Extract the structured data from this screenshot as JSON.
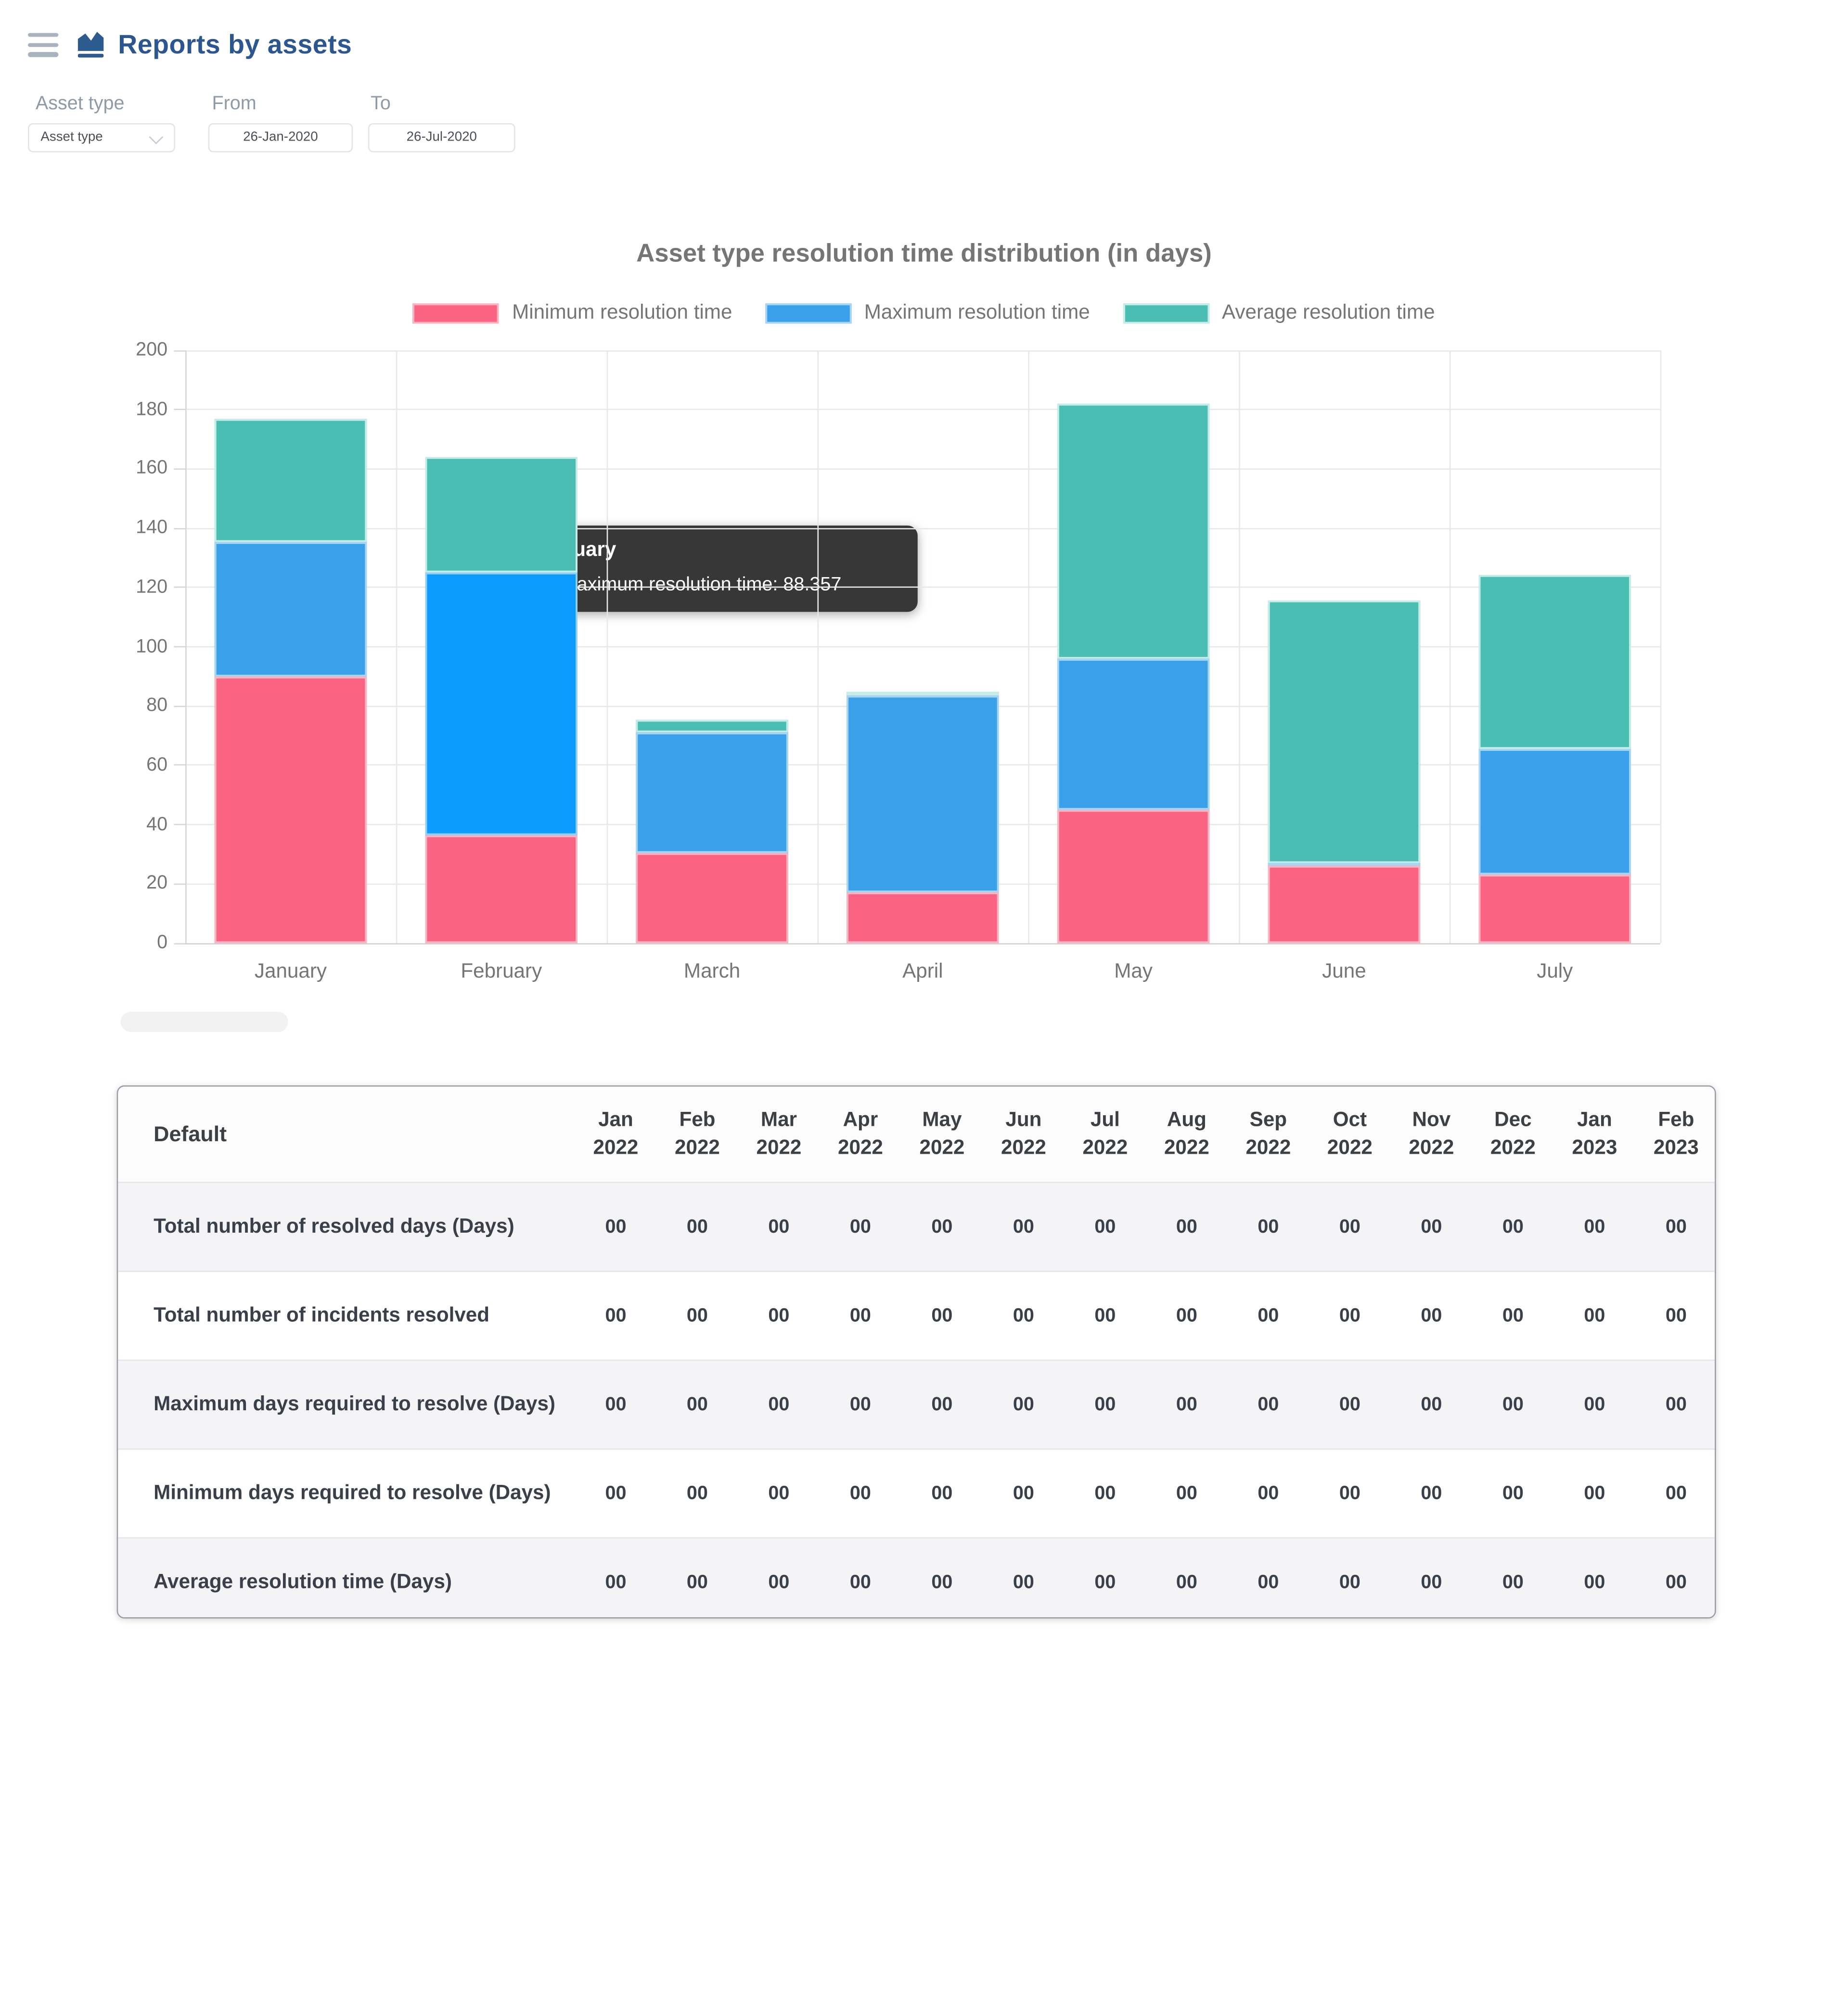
{
  "header": {
    "title": "Reports by assets"
  },
  "filters": {
    "asset_type_label": "Asset type",
    "from_label": "From",
    "to_label": "To",
    "asset_type_value": "Asset type",
    "from_value": "26-Jan-2020",
    "to_value": "26-Jul-2020"
  },
  "colors": {
    "header_navy": "#2B5690",
    "hamburger_grey": "#A9B3BD",
    "text_grey": "#757575",
    "tooltip_bg": "#2C2C2C"
  },
  "chart_data": {
    "type": "bar",
    "stacked": true,
    "title": "Asset type resolution time distribution (in days)",
    "categories": [
      "January",
      "February",
      "March",
      "April",
      "May",
      "June",
      "July"
    ],
    "series": [
      {
        "name": "Minimum resolution time",
        "color": "#FA6482",
        "edge": "#FCB3C2",
        "values": [
          90,
          36.6,
          30.6,
          17.2,
          44.8,
          26.3,
          23.2
        ]
      },
      {
        "name": "Maximum resolution time",
        "color": "#3AA0E9",
        "edge": "#A6D5F7",
        "highlight_color": "#0D9BFD",
        "highlight_edge": "#8FD0FE",
        "values": [
          45.5,
          88.357,
          40.5,
          66.2,
          51.2,
          0.6,
          42.4
        ]
      },
      {
        "name": "Average resolution time",
        "color": "#4BBEB4",
        "edge": "#C6ECE8",
        "values": [
          41.3,
          38.9,
          4.2,
          1.3,
          86,
          88.9,
          58.6
        ]
      }
    ],
    "highlight": {
      "category_index": 1,
      "series_index": 1
    },
    "ylim": [
      0,
      200
    ],
    "ytick_step": 20,
    "grid": true,
    "legend_position": "top",
    "tooltip": {
      "title": "February",
      "text": "Maximum resolution time: 88.357",
      "value": "88.357"
    }
  },
  "table": {
    "first_column_header": "Default",
    "columns": [
      {
        "month": "Jan",
        "year": "2022"
      },
      {
        "month": "Feb",
        "year": "2022"
      },
      {
        "month": "Mar",
        "year": "2022"
      },
      {
        "month": "Apr",
        "year": "2022"
      },
      {
        "month": "May",
        "year": "2022"
      },
      {
        "month": "Jun",
        "year": "2022"
      },
      {
        "month": "Jul",
        "year": "2022"
      },
      {
        "month": "Aug",
        "year": "2022"
      },
      {
        "month": "Sep",
        "year": "2022"
      },
      {
        "month": "Oct",
        "year": "2022"
      },
      {
        "month": "Nov",
        "year": "2022"
      },
      {
        "month": "Dec",
        "year": "2022"
      },
      {
        "month": "Jan",
        "year": "2023"
      },
      {
        "month": "Feb",
        "year": "2023"
      }
    ],
    "rows": [
      {
        "label": "Total number of resolved days (Days)",
        "values": [
          "00",
          "00",
          "00",
          "00",
          "00",
          "00",
          "00",
          "00",
          "00",
          "00",
          "00",
          "00",
          "00",
          "00"
        ]
      },
      {
        "label": "Total number of incidents resolved",
        "values": [
          "00",
          "00",
          "00",
          "00",
          "00",
          "00",
          "00",
          "00",
          "00",
          "00",
          "00",
          "00",
          "00",
          "00"
        ]
      },
      {
        "label": "Maximum days required to resolve (Days)",
        "values": [
          "00",
          "00",
          "00",
          "00",
          "00",
          "00",
          "00",
          "00",
          "00",
          "00",
          "00",
          "00",
          "00",
          "00"
        ]
      },
      {
        "label": "Minimum days required to resolve (Days)",
        "values": [
          "00",
          "00",
          "00",
          "00",
          "00",
          "00",
          "00",
          "00",
          "00",
          "00",
          "00",
          "00",
          "00",
          "00"
        ]
      },
      {
        "label": "Average resolution time (Days)",
        "values": [
          "00",
          "00",
          "00",
          "00",
          "00",
          "00",
          "00",
          "00",
          "00",
          "00",
          "00",
          "00",
          "00",
          "00"
        ]
      }
    ]
  }
}
